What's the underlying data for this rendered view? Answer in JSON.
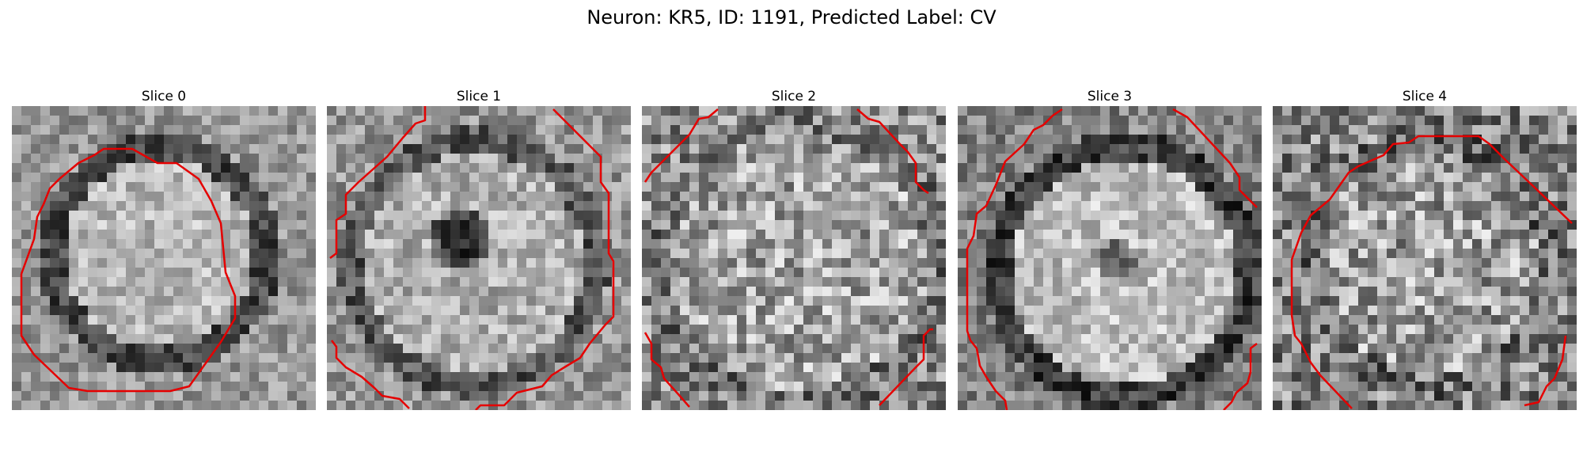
{
  "figure": {
    "title": "Neuron: KR5, ID: 1191, Predicted Label: CV"
  },
  "colors": {
    "contour": "#e50000",
    "background": "#ffffff"
  },
  "panels": [
    {
      "title": "Slice 0",
      "contrast": "bright-soma-dark-rim"
    },
    {
      "title": "Slice 1",
      "contrast": "soma-with-dark-nucleus"
    },
    {
      "title": "Slice 2",
      "contrast": "noisy-low-contrast"
    },
    {
      "title": "Slice 3",
      "contrast": "soma-with-dark-rim"
    },
    {
      "title": "Slice 4",
      "contrast": "noisy-speckled"
    }
  ]
}
